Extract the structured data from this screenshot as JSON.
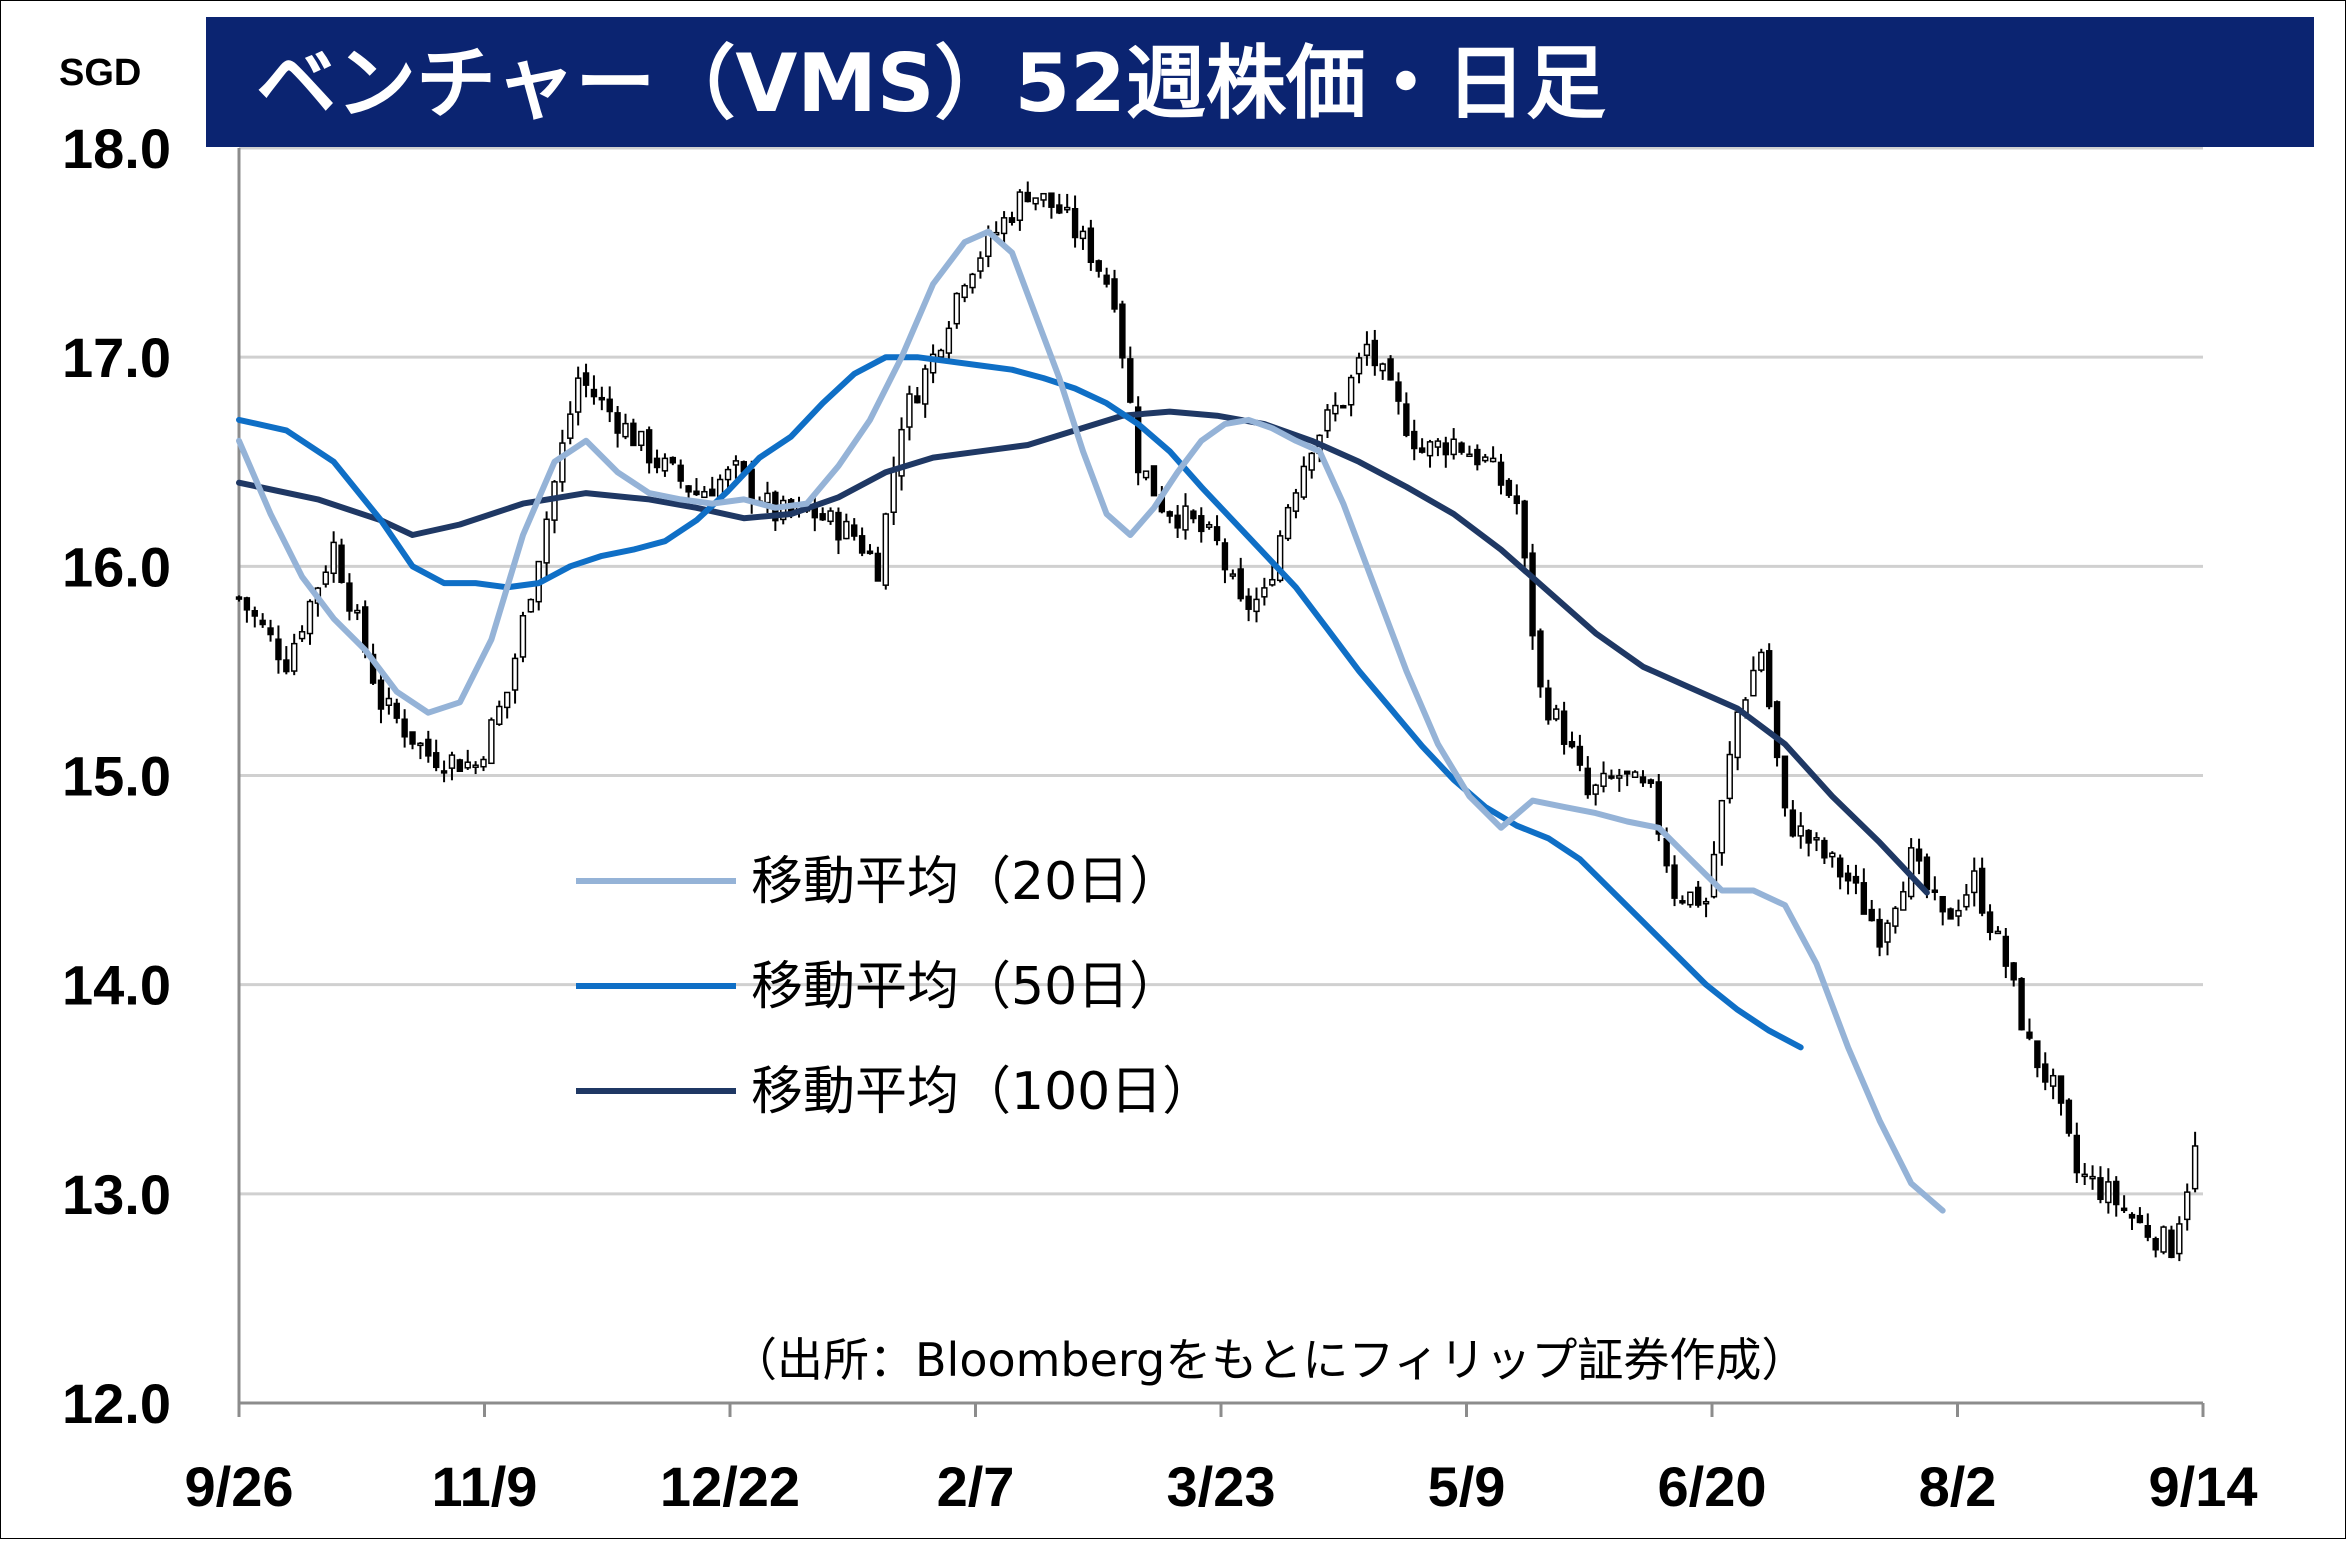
{
  "chart_data": {
    "type": "candlestick",
    "title": "ベンチャー（VMS）52週株価・日足",
    "unit": "SGD",
    "ylim": [
      12.0,
      18.0
    ],
    "y_ticks": [
      "18.0",
      "17.0",
      "16.0",
      "15.0",
      "14.0",
      "13.0",
      "12.0"
    ],
    "x_tick_labels": [
      "9/26",
      "11/9",
      "12/22",
      "2/7",
      "3/23",
      "5/9",
      "6/20",
      "8/2",
      "9/14"
    ],
    "grid": "horizontal",
    "legend_position": "center-left",
    "source": "（出所：Bloombergをもとにフィリップ証券作成）",
    "colors": {
      "title_bg": "#0b2471",
      "ma20": "#95b3d7",
      "ma50": "#0f6fc6",
      "ma100": "#1f3864",
      "grid": "#d0d0d0",
      "candle": "#000000"
    },
    "price_close_anchors": [
      [
        0,
        15.85
      ],
      [
        6,
        15.55
      ],
      [
        12,
        16.1
      ],
      [
        18,
        15.35
      ],
      [
        24,
        15.1
      ],
      [
        30,
        15.05
      ],
      [
        34,
        15.4
      ],
      [
        37,
        15.9
      ],
      [
        40,
        16.4
      ],
      [
        43,
        16.9
      ],
      [
        48,
        16.7
      ],
      [
        53,
        16.5
      ],
      [
        58,
        16.35
      ],
      [
        63,
        16.45
      ],
      [
        68,
        16.25
      ],
      [
        73,
        16.25
      ],
      [
        78,
        16.15
      ],
      [
        81,
        16.0
      ],
      [
        84,
        16.7
      ],
      [
        88,
        17.0
      ],
      [
        92,
        17.4
      ],
      [
        96,
        17.6
      ],
      [
        100,
        17.8
      ],
      [
        104,
        17.7
      ],
      [
        108,
        17.5
      ],
      [
        111,
        17.3
      ],
      [
        114,
        16.5
      ],
      [
        117,
        16.3
      ],
      [
        121,
        16.2
      ],
      [
        124,
        16.1
      ],
      [
        127,
        15.8
      ],
      [
        130,
        15.85
      ],
      [
        133,
        16.3
      ],
      [
        136,
        16.6
      ],
      [
        140,
        16.8
      ],
      [
        143,
        17.05
      ],
      [
        147,
        16.75
      ],
      [
        150,
        16.55
      ],
      [
        154,
        16.6
      ],
      [
        158,
        16.5
      ],
      [
        162,
        16.3
      ],
      [
        165,
        15.4
      ],
      [
        168,
        15.2
      ],
      [
        171,
        14.9
      ],
      [
        175,
        15.0
      ],
      [
        179,
        14.9
      ],
      [
        182,
        14.45
      ],
      [
        186,
        14.4
      ],
      [
        190,
        15.3
      ],
      [
        193,
        15.6
      ],
      [
        196,
        14.8
      ],
      [
        200,
        14.65
      ],
      [
        204,
        14.5
      ],
      [
        208,
        14.25
      ],
      [
        212,
        14.6
      ],
      [
        216,
        14.3
      ],
      [
        220,
        14.5
      ],
      [
        224,
        14.1
      ],
      [
        227,
        13.7
      ],
      [
        230,
        13.5
      ],
      [
        233,
        13.1
      ],
      [
        237,
        13.0
      ],
      [
        241,
        12.85
      ],
      [
        245,
        12.75
      ],
      [
        248,
        13.2
      ]
    ],
    "ma20": [
      [
        0,
        16.6
      ],
      [
        4,
        16.25
      ],
      [
        8,
        15.95
      ],
      [
        12,
        15.75
      ],
      [
        16,
        15.6
      ],
      [
        20,
        15.4
      ],
      [
        24,
        15.3
      ],
      [
        28,
        15.35
      ],
      [
        32,
        15.65
      ],
      [
        36,
        16.15
      ],
      [
        40,
        16.5
      ],
      [
        44,
        16.6
      ],
      [
        48,
        16.45
      ],
      [
        52,
        16.35
      ],
      [
        56,
        16.32
      ],
      [
        60,
        16.3
      ],
      [
        64,
        16.32
      ],
      [
        68,
        16.28
      ],
      [
        72,
        16.3
      ],
      [
        76,
        16.48
      ],
      [
        80,
        16.7
      ],
      [
        84,
        17.0
      ],
      [
        88,
        17.35
      ],
      [
        92,
        17.55
      ],
      [
        95,
        17.6
      ],
      [
        98,
        17.5
      ],
      [
        101,
        17.2
      ],
      [
        104,
        16.9
      ],
      [
        107,
        16.55
      ],
      [
        110,
        16.25
      ],
      [
        113,
        16.15
      ],
      [
        116,
        16.28
      ],
      [
        119,
        16.45
      ],
      [
        122,
        16.6
      ],
      [
        125,
        16.68
      ],
      [
        128,
        16.7
      ],
      [
        131,
        16.66
      ],
      [
        134,
        16.6
      ],
      [
        137,
        16.55
      ],
      [
        140,
        16.3
      ],
      [
        144,
        15.9
      ],
      [
        148,
        15.5
      ],
      [
        152,
        15.15
      ],
      [
        156,
        14.9
      ],
      [
        160,
        14.75
      ],
      [
        164,
        14.88
      ],
      [
        168,
        14.85
      ],
      [
        172,
        14.82
      ],
      [
        176,
        14.78
      ],
      [
        180,
        14.75
      ],
      [
        184,
        14.6
      ],
      [
        188,
        14.45
      ],
      [
        192,
        14.45
      ],
      [
        196,
        14.38
      ],
      [
        200,
        14.1
      ],
      [
        204,
        13.7
      ],
      [
        208,
        13.35
      ],
      [
        212,
        13.05
      ],
      [
        216,
        12.92
      ]
    ],
    "ma50": [
      [
        0,
        16.7
      ],
      [
        6,
        16.65
      ],
      [
        12,
        16.5
      ],
      [
        18,
        16.22
      ],
      [
        22,
        16.0
      ],
      [
        26,
        15.92
      ],
      [
        30,
        15.92
      ],
      [
        34,
        15.9
      ],
      [
        38,
        15.92
      ],
      [
        42,
        16.0
      ],
      [
        46,
        16.05
      ],
      [
        50,
        16.08
      ],
      [
        54,
        16.12
      ],
      [
        58,
        16.22
      ],
      [
        62,
        16.36
      ],
      [
        66,
        16.52
      ],
      [
        70,
        16.62
      ],
      [
        74,
        16.78
      ],
      [
        78,
        16.92
      ],
      [
        82,
        17.0
      ],
      [
        86,
        17.0
      ],
      [
        90,
        16.98
      ],
      [
        94,
        16.96
      ],
      [
        98,
        16.94
      ],
      [
        102,
        16.9
      ],
      [
        106,
        16.85
      ],
      [
        110,
        16.78
      ],
      [
        114,
        16.68
      ],
      [
        118,
        16.55
      ],
      [
        122,
        16.38
      ],
      [
        126,
        16.22
      ],
      [
        130,
        16.06
      ],
      [
        134,
        15.9
      ],
      [
        138,
        15.7
      ],
      [
        142,
        15.5
      ],
      [
        146,
        15.32
      ],
      [
        150,
        15.14
      ],
      [
        154,
        14.98
      ],
      [
        158,
        14.85
      ],
      [
        162,
        14.76
      ],
      [
        166,
        14.7
      ],
      [
        170,
        14.6
      ],
      [
        174,
        14.45
      ],
      [
        178,
        14.3
      ],
      [
        182,
        14.15
      ],
      [
        186,
        14.0
      ],
      [
        190,
        13.88
      ],
      [
        194,
        13.78
      ],
      [
        198,
        13.7
      ]
    ],
    "ma100": [
      [
        0,
        16.4
      ],
      [
        10,
        16.32
      ],
      [
        18,
        16.22
      ],
      [
        22,
        16.15
      ],
      [
        28,
        16.2
      ],
      [
        36,
        16.3
      ],
      [
        44,
        16.35
      ],
      [
        52,
        16.32
      ],
      [
        58,
        16.28
      ],
      [
        64,
        16.23
      ],
      [
        70,
        16.25
      ],
      [
        76,
        16.33
      ],
      [
        82,
        16.45
      ],
      [
        88,
        16.52
      ],
      [
        94,
        16.55
      ],
      [
        100,
        16.58
      ],
      [
        106,
        16.65
      ],
      [
        112,
        16.72
      ],
      [
        118,
        16.74
      ],
      [
        124,
        16.72
      ],
      [
        130,
        16.68
      ],
      [
        136,
        16.6
      ],
      [
        142,
        16.5
      ],
      [
        148,
        16.38
      ],
      [
        154,
        16.25
      ],
      [
        160,
        16.08
      ],
      [
        166,
        15.88
      ],
      [
        172,
        15.68
      ],
      [
        178,
        15.52
      ],
      [
        184,
        15.42
      ],
      [
        190,
        15.32
      ],
      [
        196,
        15.15
      ],
      [
        202,
        14.9
      ],
      [
        208,
        14.68
      ],
      [
        214,
        14.44
      ]
    ],
    "legend": [
      {
        "label": "移動平均（20日）",
        "color": "#95b3d7"
      },
      {
        "label": "移動平均（50日）",
        "color": "#0f6fc6"
      },
      {
        "label": "移動平均（100日）",
        "color": "#1f3864"
      }
    ]
  }
}
